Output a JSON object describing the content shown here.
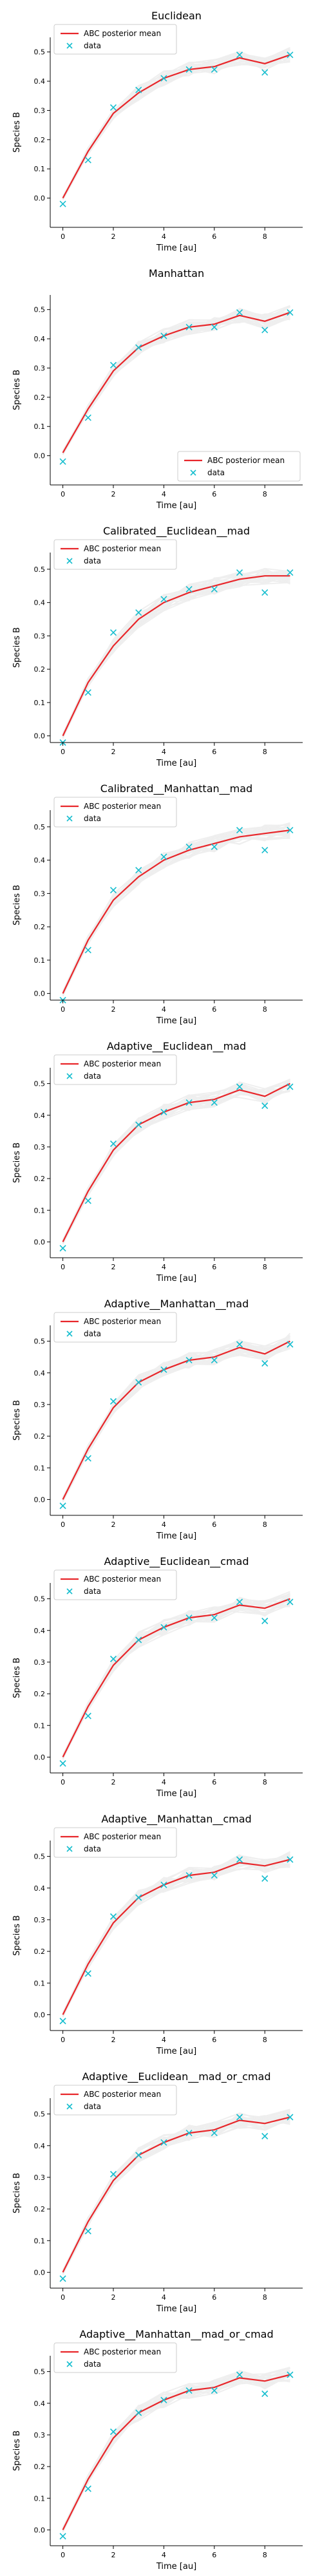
{
  "legend": {
    "posterior_label": "ABC posterior mean",
    "data_label": "data"
  },
  "colors": {
    "posterior_mean": "#e8262a",
    "data": "#17becf",
    "samples": "#7f7f7f"
  },
  "chart_data": [
    {
      "type": "line",
      "title": "Euclidean",
      "xlabel": "Time [au]",
      "ylabel": "Species B",
      "xlim": [
        -0.5,
        9.5
      ],
      "ylim": [
        -0.1,
        0.55
      ],
      "xticks": [
        0,
        2,
        4,
        6,
        8
      ],
      "yticks": [
        0.0,
        0.1,
        0.2,
        0.3,
        0.4,
        0.5
      ],
      "legend_position": "top-left",
      "x": [
        0,
        1,
        2,
        3,
        4,
        5,
        6,
        7,
        8,
        9
      ],
      "series": [
        {
          "name": "ABC posterior mean",
          "values": [
            0.0,
            0.16,
            0.29,
            0.36,
            0.41,
            0.44,
            0.45,
            0.48,
            0.46,
            0.49
          ]
        },
        {
          "name": "data",
          "values": [
            -0.02,
            0.13,
            0.31,
            0.37,
            0.41,
            0.44,
            0.44,
            0.49,
            0.43,
            0.49
          ]
        }
      ]
    },
    {
      "type": "line",
      "title": "Manhattan",
      "xlabel": "Time [au]",
      "ylabel": "Species B",
      "xlim": [
        -0.5,
        9.5
      ],
      "ylim": [
        -0.1,
        0.55
      ],
      "xticks": [
        0,
        2,
        4,
        6,
        8
      ],
      "yticks": [
        0.0,
        0.1,
        0.2,
        0.3,
        0.4,
        0.5
      ],
      "legend_position": "bottom-right",
      "x": [
        0,
        1,
        2,
        3,
        4,
        5,
        6,
        7,
        8,
        9
      ],
      "series": [
        {
          "name": "ABC posterior mean",
          "values": [
            0.01,
            0.16,
            0.29,
            0.37,
            0.41,
            0.44,
            0.45,
            0.48,
            0.46,
            0.49
          ]
        },
        {
          "name": "data",
          "values": [
            -0.02,
            0.13,
            0.31,
            0.37,
            0.41,
            0.44,
            0.44,
            0.49,
            0.43,
            0.49
          ]
        }
      ]
    },
    {
      "type": "line",
      "title": "Calibrated__Euclidean__mad",
      "xlabel": "Time [au]",
      "ylabel": "Species B",
      "xlim": [
        -0.5,
        9.5
      ],
      "ylim": [
        -0.02,
        0.55
      ],
      "xticks": [
        0,
        2,
        4,
        6,
        8
      ],
      "yticks": [
        0.0,
        0.1,
        0.2,
        0.3,
        0.4,
        0.5
      ],
      "legend_position": "top-left",
      "x": [
        0,
        1,
        2,
        3,
        4,
        5,
        6,
        7,
        8,
        9
      ],
      "series": [
        {
          "name": "ABC posterior mean",
          "values": [
            0.0,
            0.16,
            0.27,
            0.35,
            0.4,
            0.43,
            0.45,
            0.47,
            0.48,
            0.48
          ]
        },
        {
          "name": "data",
          "values": [
            -0.02,
            0.13,
            0.31,
            0.37,
            0.41,
            0.44,
            0.44,
            0.49,
            0.43,
            0.49
          ]
        }
      ]
    },
    {
      "type": "line",
      "title": "Calibrated__Manhattan__mad",
      "xlabel": "Time [au]",
      "ylabel": "Species B",
      "xlim": [
        -0.5,
        9.5
      ],
      "ylim": [
        -0.02,
        0.55
      ],
      "xticks": [
        0,
        2,
        4,
        6,
        8
      ],
      "yticks": [
        0.0,
        0.1,
        0.2,
        0.3,
        0.4,
        0.5
      ],
      "legend_position": "top-left",
      "x": [
        0,
        1,
        2,
        3,
        4,
        5,
        6,
        7,
        8,
        9
      ],
      "series": [
        {
          "name": "ABC posterior mean",
          "values": [
            0.0,
            0.16,
            0.28,
            0.35,
            0.4,
            0.43,
            0.45,
            0.47,
            0.48,
            0.49
          ]
        },
        {
          "name": "data",
          "values": [
            -0.02,
            0.13,
            0.31,
            0.37,
            0.41,
            0.44,
            0.44,
            0.49,
            0.43,
            0.49
          ]
        }
      ]
    },
    {
      "type": "line",
      "title": "Adaptive__Euclidean__mad",
      "xlabel": "Time [au]",
      "ylabel": "Species B",
      "xlim": [
        -0.5,
        9.5
      ],
      "ylim": [
        -0.05,
        0.55
      ],
      "xticks": [
        0,
        2,
        4,
        6,
        8
      ],
      "yticks": [
        0.0,
        0.1,
        0.2,
        0.3,
        0.4,
        0.5
      ],
      "legend_position": "top-left",
      "x": [
        0,
        1,
        2,
        3,
        4,
        5,
        6,
        7,
        8,
        9
      ],
      "series": [
        {
          "name": "ABC posterior mean",
          "values": [
            0.0,
            0.16,
            0.29,
            0.37,
            0.41,
            0.44,
            0.45,
            0.48,
            0.46,
            0.5
          ]
        },
        {
          "name": "data",
          "values": [
            -0.02,
            0.13,
            0.31,
            0.37,
            0.41,
            0.44,
            0.44,
            0.49,
            0.43,
            0.49
          ]
        }
      ]
    },
    {
      "type": "line",
      "title": "Adaptive__Manhattan__mad",
      "xlabel": "Time [au]",
      "ylabel": "Species B",
      "xlim": [
        -0.5,
        9.5
      ],
      "ylim": [
        -0.05,
        0.55
      ],
      "xticks": [
        0,
        2,
        4,
        6,
        8
      ],
      "yticks": [
        0.0,
        0.1,
        0.2,
        0.3,
        0.4,
        0.5
      ],
      "legend_position": "top-left",
      "x": [
        0,
        1,
        2,
        3,
        4,
        5,
        6,
        7,
        8,
        9
      ],
      "series": [
        {
          "name": "ABC posterior mean",
          "values": [
            0.0,
            0.16,
            0.29,
            0.37,
            0.41,
            0.44,
            0.45,
            0.48,
            0.46,
            0.5
          ]
        },
        {
          "name": "data",
          "values": [
            -0.02,
            0.13,
            0.31,
            0.37,
            0.41,
            0.44,
            0.44,
            0.49,
            0.43,
            0.49
          ]
        }
      ]
    },
    {
      "type": "line",
      "title": "Adaptive__Euclidean__cmad",
      "xlabel": "Time [au]",
      "ylabel": "Species B",
      "xlim": [
        -0.5,
        9.5
      ],
      "ylim": [
        -0.05,
        0.55
      ],
      "xticks": [
        0,
        2,
        4,
        6,
        8
      ],
      "yticks": [
        0.0,
        0.1,
        0.2,
        0.3,
        0.4,
        0.5
      ],
      "legend_position": "top-left",
      "x": [
        0,
        1,
        2,
        3,
        4,
        5,
        6,
        7,
        8,
        9
      ],
      "series": [
        {
          "name": "ABC posterior mean",
          "values": [
            0.0,
            0.16,
            0.29,
            0.37,
            0.41,
            0.44,
            0.45,
            0.48,
            0.47,
            0.5
          ]
        },
        {
          "name": "data",
          "values": [
            -0.02,
            0.13,
            0.31,
            0.37,
            0.41,
            0.44,
            0.44,
            0.49,
            0.43,
            0.49
          ]
        }
      ]
    },
    {
      "type": "line",
      "title": "Adaptive__Manhattan__cmad",
      "xlabel": "Time [au]",
      "ylabel": "Species B",
      "xlim": [
        -0.5,
        9.5
      ],
      "ylim": [
        -0.05,
        0.55
      ],
      "xticks": [
        0,
        2,
        4,
        6,
        8
      ],
      "yticks": [
        0.0,
        0.1,
        0.2,
        0.3,
        0.4,
        0.5
      ],
      "legend_position": "top-left",
      "x": [
        0,
        1,
        2,
        3,
        4,
        5,
        6,
        7,
        8,
        9
      ],
      "series": [
        {
          "name": "ABC posterior mean",
          "values": [
            0.0,
            0.16,
            0.29,
            0.37,
            0.41,
            0.44,
            0.45,
            0.48,
            0.47,
            0.49
          ]
        },
        {
          "name": "data",
          "values": [
            -0.02,
            0.13,
            0.31,
            0.37,
            0.41,
            0.44,
            0.44,
            0.49,
            0.43,
            0.49
          ]
        }
      ]
    },
    {
      "type": "line",
      "title": "Adaptive__Euclidean__mad_or_cmad",
      "xlabel": "Time [au]",
      "ylabel": "Species B",
      "xlim": [
        -0.5,
        9.5
      ],
      "ylim": [
        -0.05,
        0.55
      ],
      "xticks": [
        0,
        2,
        4,
        6,
        8
      ],
      "yticks": [
        0.0,
        0.1,
        0.2,
        0.3,
        0.4,
        0.5
      ],
      "legend_position": "top-left",
      "x": [
        0,
        1,
        2,
        3,
        4,
        5,
        6,
        7,
        8,
        9
      ],
      "series": [
        {
          "name": "ABC posterior mean",
          "values": [
            0.0,
            0.16,
            0.29,
            0.37,
            0.41,
            0.44,
            0.45,
            0.48,
            0.47,
            0.49
          ]
        },
        {
          "name": "data",
          "values": [
            -0.02,
            0.13,
            0.31,
            0.37,
            0.41,
            0.44,
            0.44,
            0.49,
            0.43,
            0.49
          ]
        }
      ]
    },
    {
      "type": "line",
      "title": "Adaptive__Manhattan__mad_or_cmad",
      "xlabel": "Time [au]",
      "ylabel": "Species B",
      "xlim": [
        -0.5,
        9.5
      ],
      "ylim": [
        -0.05,
        0.55
      ],
      "xticks": [
        0,
        2,
        4,
        6,
        8
      ],
      "yticks": [
        0.0,
        0.1,
        0.2,
        0.3,
        0.4,
        0.5
      ],
      "legend_position": "top-left",
      "x": [
        0,
        1,
        2,
        3,
        4,
        5,
        6,
        7,
        8,
        9
      ],
      "series": [
        {
          "name": "ABC posterior mean",
          "values": [
            0.0,
            0.16,
            0.29,
            0.37,
            0.41,
            0.44,
            0.45,
            0.48,
            0.47,
            0.49
          ]
        },
        {
          "name": "data",
          "values": [
            -0.02,
            0.13,
            0.31,
            0.37,
            0.41,
            0.44,
            0.44,
            0.49,
            0.43,
            0.49
          ]
        }
      ]
    }
  ]
}
